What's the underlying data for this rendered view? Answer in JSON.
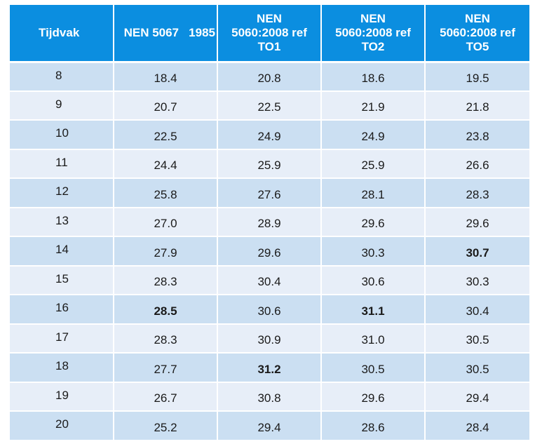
{
  "table": {
    "headers": [
      [
        "Tijdvak"
      ],
      [
        "NEN 5067   1985"
      ],
      [
        "NEN",
        "5060:2008 ref",
        "TO1"
      ],
      [
        "NEN",
        "5060:2008 ref",
        "TO2"
      ],
      [
        "NEN",
        "5060:2008 ref",
        "TO5"
      ]
    ],
    "rows": [
      {
        "period": "8",
        "values": [
          "18.4",
          "20.8",
          "18.6",
          "19.5"
        ],
        "bold": [
          false,
          false,
          false,
          false
        ]
      },
      {
        "period": "9",
        "values": [
          "20.7",
          "22.5",
          "21.9",
          "21.8"
        ],
        "bold": [
          false,
          false,
          false,
          false
        ]
      },
      {
        "period": "10",
        "values": [
          "22.5",
          "24.9",
          "24.9",
          "23.8"
        ],
        "bold": [
          false,
          false,
          false,
          false
        ]
      },
      {
        "period": "11",
        "values": [
          "24.4",
          "25.9",
          "25.9",
          "26.6"
        ],
        "bold": [
          false,
          false,
          false,
          false
        ]
      },
      {
        "period": "12",
        "values": [
          "25.8",
          "27.6",
          "28.1",
          "28.3"
        ],
        "bold": [
          false,
          false,
          false,
          false
        ]
      },
      {
        "period": "13",
        "values": [
          "27.0",
          "28.9",
          "29.6",
          "29.6"
        ],
        "bold": [
          false,
          false,
          false,
          false
        ]
      },
      {
        "period": "14",
        "values": [
          "27.9",
          "29.6",
          "30.3",
          "30.7"
        ],
        "bold": [
          false,
          false,
          false,
          true
        ]
      },
      {
        "period": "15",
        "values": [
          "28.3",
          "30.4",
          "30.6",
          "30.3"
        ],
        "bold": [
          false,
          false,
          false,
          false
        ]
      },
      {
        "period": "16",
        "values": [
          "28.5",
          "30.6",
          "31.1",
          "30.4"
        ],
        "bold": [
          true,
          false,
          true,
          false
        ]
      },
      {
        "period": "17",
        "values": [
          "28.3",
          "30.9",
          "31.0",
          "30.5"
        ],
        "bold": [
          false,
          false,
          false,
          false
        ]
      },
      {
        "period": "18",
        "values": [
          "27.7",
          "31.2",
          "30.5",
          "30.5"
        ],
        "bold": [
          false,
          true,
          false,
          false
        ]
      },
      {
        "period": "19",
        "values": [
          "26.7",
          "30.8",
          "29.6",
          "29.4"
        ],
        "bold": [
          false,
          false,
          false,
          false
        ]
      },
      {
        "period": "20",
        "values": [
          "25.2",
          "29.4",
          "28.6",
          "28.4"
        ],
        "bold": [
          false,
          false,
          false,
          false
        ]
      }
    ]
  },
  "colors": {
    "header_bg": "#0b8ee0",
    "row_odd_bg": "#cbdff2",
    "row_even_bg": "#e7eef8"
  }
}
